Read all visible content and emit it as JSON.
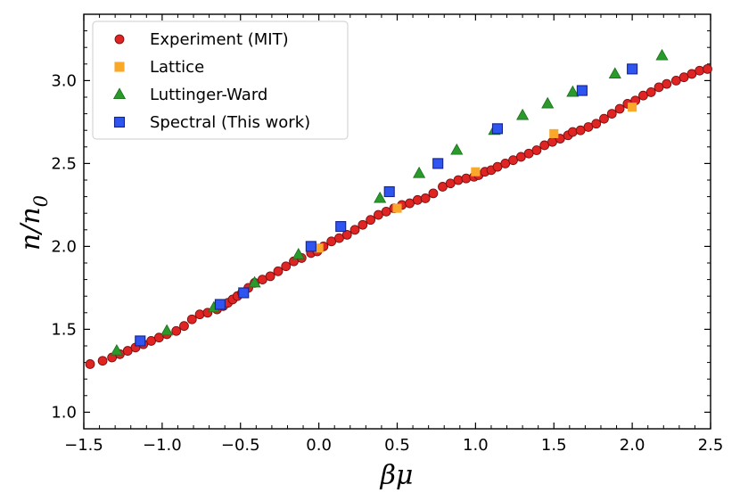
{
  "chart_data": {
    "type": "scatter",
    "title": "",
    "xlabel": "βμ",
    "ylabel_main": "n/n",
    "ylabel_sub": "0",
    "xlim": [
      -1.5,
      2.5
    ],
    "ylim": [
      0.9,
      3.4
    ],
    "xticks": [
      -1.5,
      -1.0,
      -0.5,
      0.0,
      0.5,
      1.0,
      1.5,
      2.0,
      2.5
    ],
    "xtick_labels": [
      "−1.5",
      "−1.0",
      "−0.5",
      "0.0",
      "0.5",
      "1.0",
      "1.5",
      "2.0",
      "2.5"
    ],
    "yticks": [
      1.0,
      1.5,
      2.0,
      2.5,
      3.0
    ],
    "ytick_labels": [
      "1.0",
      "1.5",
      "2.0",
      "2.5",
      "3.0"
    ],
    "legend_position": "top-left",
    "series": [
      {
        "name": "Experiment (MIT)",
        "marker": "circle",
        "color": "#e02424",
        "edge": "#7a1010",
        "x": [
          -1.46,
          -1.38,
          -1.32,
          -1.27,
          -1.22,
          -1.17,
          -1.12,
          -1.07,
          -1.02,
          -0.97,
          -0.91,
          -0.86,
          -0.81,
          -0.76,
          -0.71,
          -0.65,
          -0.61,
          -0.58,
          -0.55,
          -0.52,
          -0.49,
          -0.45,
          -0.41,
          -0.36,
          -0.31,
          -0.26,
          -0.21,
          -0.16,
          -0.11,
          -0.05,
          -0.01,
          0.03,
          0.08,
          0.13,
          0.18,
          0.23,
          0.28,
          0.33,
          0.38,
          0.43,
          0.48,
          0.53,
          0.58,
          0.63,
          0.68,
          0.73,
          0.79,
          0.84,
          0.89,
          0.94,
          0.99,
          1.02,
          1.06,
          1.1,
          1.14,
          1.19,
          1.24,
          1.29,
          1.34,
          1.39,
          1.44,
          1.49,
          1.54,
          1.59,
          1.62,
          1.67,
          1.72,
          1.77,
          1.82,
          1.87,
          1.92,
          1.97,
          2.02,
          2.07,
          2.12,
          2.17,
          2.22,
          2.28,
          2.33,
          2.38,
          2.43,
          2.48
        ],
        "y": [
          1.29,
          1.31,
          1.33,
          1.35,
          1.37,
          1.39,
          1.41,
          1.43,
          1.45,
          1.47,
          1.49,
          1.52,
          1.56,
          1.59,
          1.6,
          1.62,
          1.64,
          1.66,
          1.68,
          1.7,
          1.72,
          1.75,
          1.78,
          1.8,
          1.82,
          1.85,
          1.88,
          1.91,
          1.93,
          1.96,
          1.97,
          2.0,
          2.03,
          2.05,
          2.07,
          2.1,
          2.13,
          2.16,
          2.19,
          2.21,
          2.23,
          2.25,
          2.26,
          2.28,
          2.29,
          2.32,
          2.36,
          2.38,
          2.4,
          2.41,
          2.42,
          2.43,
          2.45,
          2.46,
          2.48,
          2.5,
          2.52,
          2.54,
          2.56,
          2.58,
          2.61,
          2.63,
          2.65,
          2.67,
          2.69,
          2.7,
          2.72,
          2.74,
          2.77,
          2.8,
          2.83,
          2.86,
          2.88,
          2.91,
          2.93,
          2.96,
          2.98,
          3.0,
          3.02,
          3.04,
          3.06,
          3.07
        ]
      },
      {
        "name": "Lattice",
        "marker": "square",
        "color": "#f9a82a",
        "edge": "#f9a82a",
        "x": [
          0.0,
          0.5,
          1.0,
          1.5,
          2.0
        ],
        "y": [
          1.99,
          2.23,
          2.45,
          2.68,
          2.84
        ]
      },
      {
        "name": "Luttinger-Ward",
        "marker": "triangle",
        "color": "#2a9a2a",
        "edge": "#1e6e1e",
        "x": [
          -1.29,
          -0.97,
          -0.67,
          -0.41,
          -0.13,
          0.39,
          0.64,
          0.88,
          1.12,
          1.3,
          1.46,
          1.62,
          1.89,
          2.19
        ],
        "y": [
          1.37,
          1.49,
          1.63,
          1.78,
          1.95,
          2.29,
          2.44,
          2.58,
          2.7,
          2.79,
          2.86,
          2.93,
          3.04,
          3.15
        ]
      },
      {
        "name": "Spectral (This work)",
        "marker": "square",
        "color": "#2e55f0",
        "edge": "#14238f",
        "x": [
          -1.14,
          -0.63,
          -0.48,
          -0.05,
          0.14,
          0.45,
          0.76,
          1.14,
          1.68,
          2.0
        ],
        "y": [
          1.43,
          1.65,
          1.72,
          2.0,
          2.12,
          2.33,
          2.5,
          2.71,
          2.94,
          3.07
        ]
      }
    ]
  }
}
